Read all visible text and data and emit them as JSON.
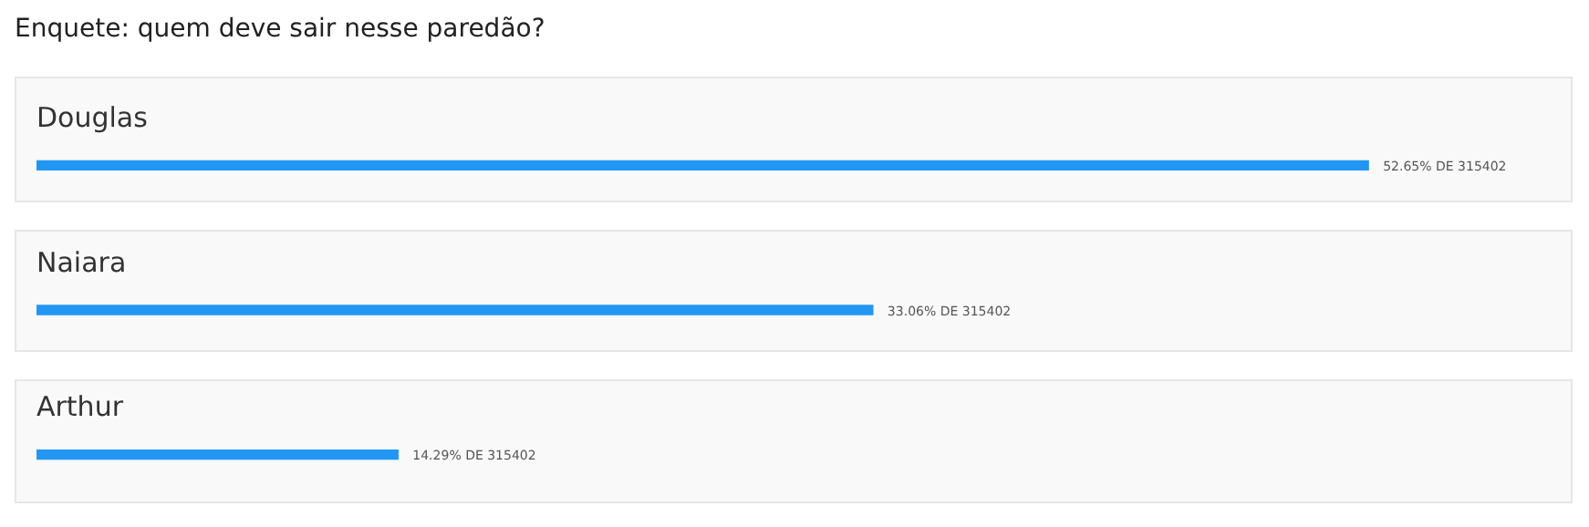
{
  "chart_data": {
    "type": "bar",
    "orientation": "horizontal",
    "title": "Enquete: quem deve sair nesse paredão?",
    "categories": [
      "Douglas",
      "Naiara",
      "Arthur"
    ],
    "values": [
      52.65,
      33.06,
      14.29
    ],
    "value_labels": [
      "52.65% DE 315402",
      "33.06% DE 315402",
      "14.29% DE 315402"
    ],
    "color": "#2196f3"
  }
}
